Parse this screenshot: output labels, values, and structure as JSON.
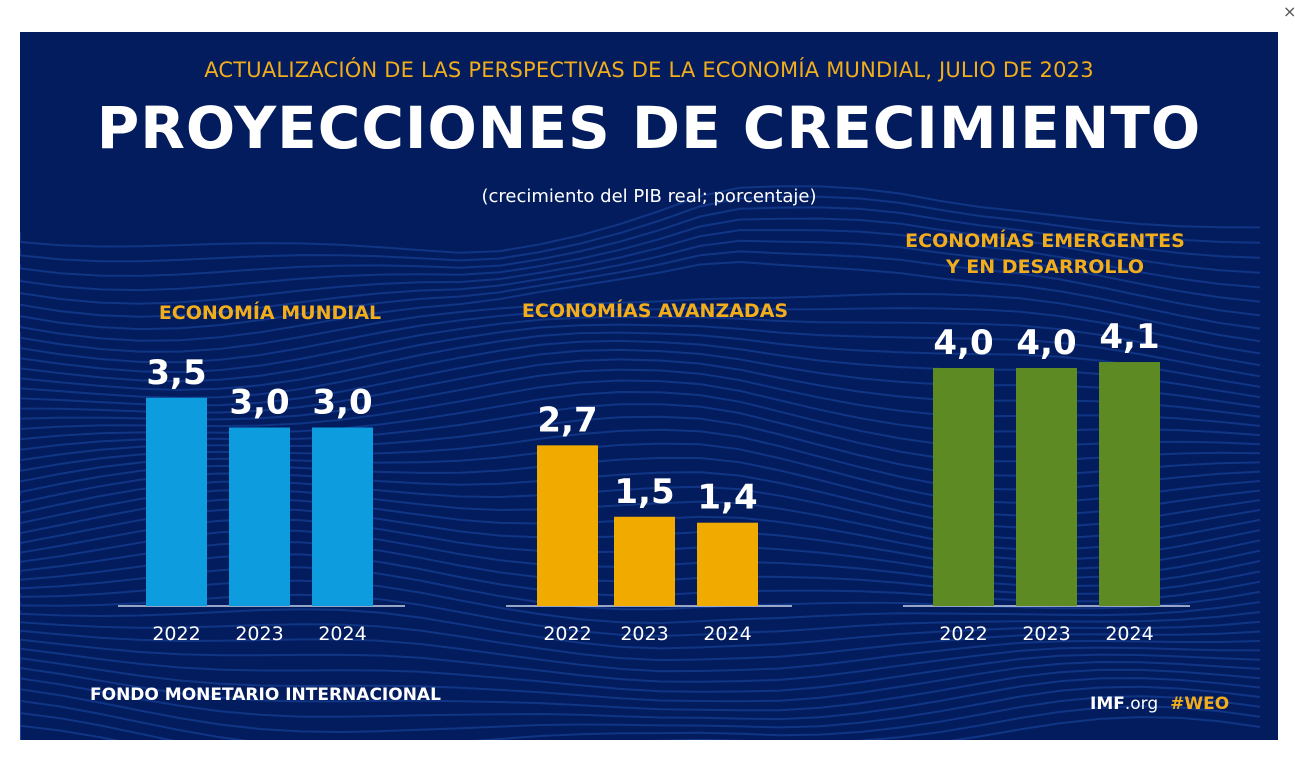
{
  "window": {
    "close_label": "×"
  },
  "header": {
    "supertitle": "ACTUALIZACIÓN DE LAS PERSPECTIVAS DE LA ECONOMÍA MUNDIAL, JULIO DE 2023",
    "title": "PROYECCIONES DE CRECIMIENTO",
    "subtitle": "(crecimiento del PIB real; porcentaje)"
  },
  "footer": {
    "organization": "FONDO MONETARIO INTERNACIONAL",
    "site_bold": "IMF",
    "site_rest": ".org",
    "hashtag": "#WEO"
  },
  "colors": {
    "background": "#031c5e",
    "accent_gold": "#f1ad1c",
    "world": "#0d9ddf",
    "advanced": "#f1ab00",
    "emerging": "#5e8a23"
  },
  "chart_data": [
    {
      "type": "bar",
      "title": "ECONOMÍA MUNDIAL",
      "categories": [
        "2022",
        "2023",
        "2024"
      ],
      "values": [
        3.5,
        3.0,
        3.0
      ],
      "labels": [
        "3,5",
        "3,0",
        "3,0"
      ],
      "color": "#0d9ddf",
      "xlabel": "",
      "ylabel": "crecimiento del PIB real (%)",
      "ylim": [
        0,
        4.5
      ]
    },
    {
      "type": "bar",
      "title": "ECONOMÍAS AVANZADAS",
      "categories": [
        "2022",
        "2023",
        "2024"
      ],
      "values": [
        2.7,
        1.5,
        1.4
      ],
      "labels": [
        "2,7",
        "1,5",
        "1,4"
      ],
      "color": "#f1ab00",
      "xlabel": "",
      "ylabel": "crecimiento del PIB real (%)",
      "ylim": [
        0,
        4.5
      ]
    },
    {
      "type": "bar",
      "title": "ECONOMÍAS EMERGENTES Y EN DESARROLLO",
      "title_lines": [
        "ECONOMÍAS EMERGENTES",
        "Y EN DESARROLLO"
      ],
      "categories": [
        "2022",
        "2023",
        "2024"
      ],
      "values": [
        4.0,
        4.0,
        4.1
      ],
      "labels": [
        "4,0",
        "4,0",
        "4,1"
      ],
      "color": "#5e8a23",
      "xlabel": "",
      "ylabel": "crecimiento del PIB real (%)",
      "ylim": [
        0,
        4.5
      ]
    }
  ]
}
